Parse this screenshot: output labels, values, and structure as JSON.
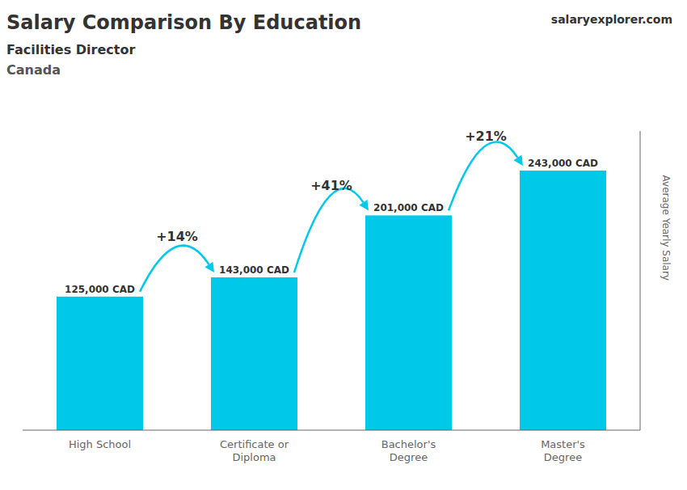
{
  "chart_data": {
    "type": "bar",
    "title": "Salary Comparison By Education",
    "subtitle": [
      "Facilities Director",
      "Canada"
    ],
    "annotations": [
      "salaryexplorer.com",
      "+14%",
      "+41%",
      "+21%"
    ],
    "ylabel": "Average Yearly Salary",
    "categories": [
      "High School",
      "Certificate or\nDiploma",
      "Bachelor's\nDegree",
      "Master's\nDegree"
    ],
    "values": [
      125000,
      143000,
      201000,
      243000
    ],
    "value_labels": [
      "125,000 CAD",
      "143,000 CAD",
      "201,000 CAD",
      "243,000 CAD"
    ],
    "data_labels": true,
    "color": "#00c8e8",
    "ylim": [
      0,
      280000
    ],
    "yticks": [],
    "tick_labels": "x",
    "grid": false
  }
}
